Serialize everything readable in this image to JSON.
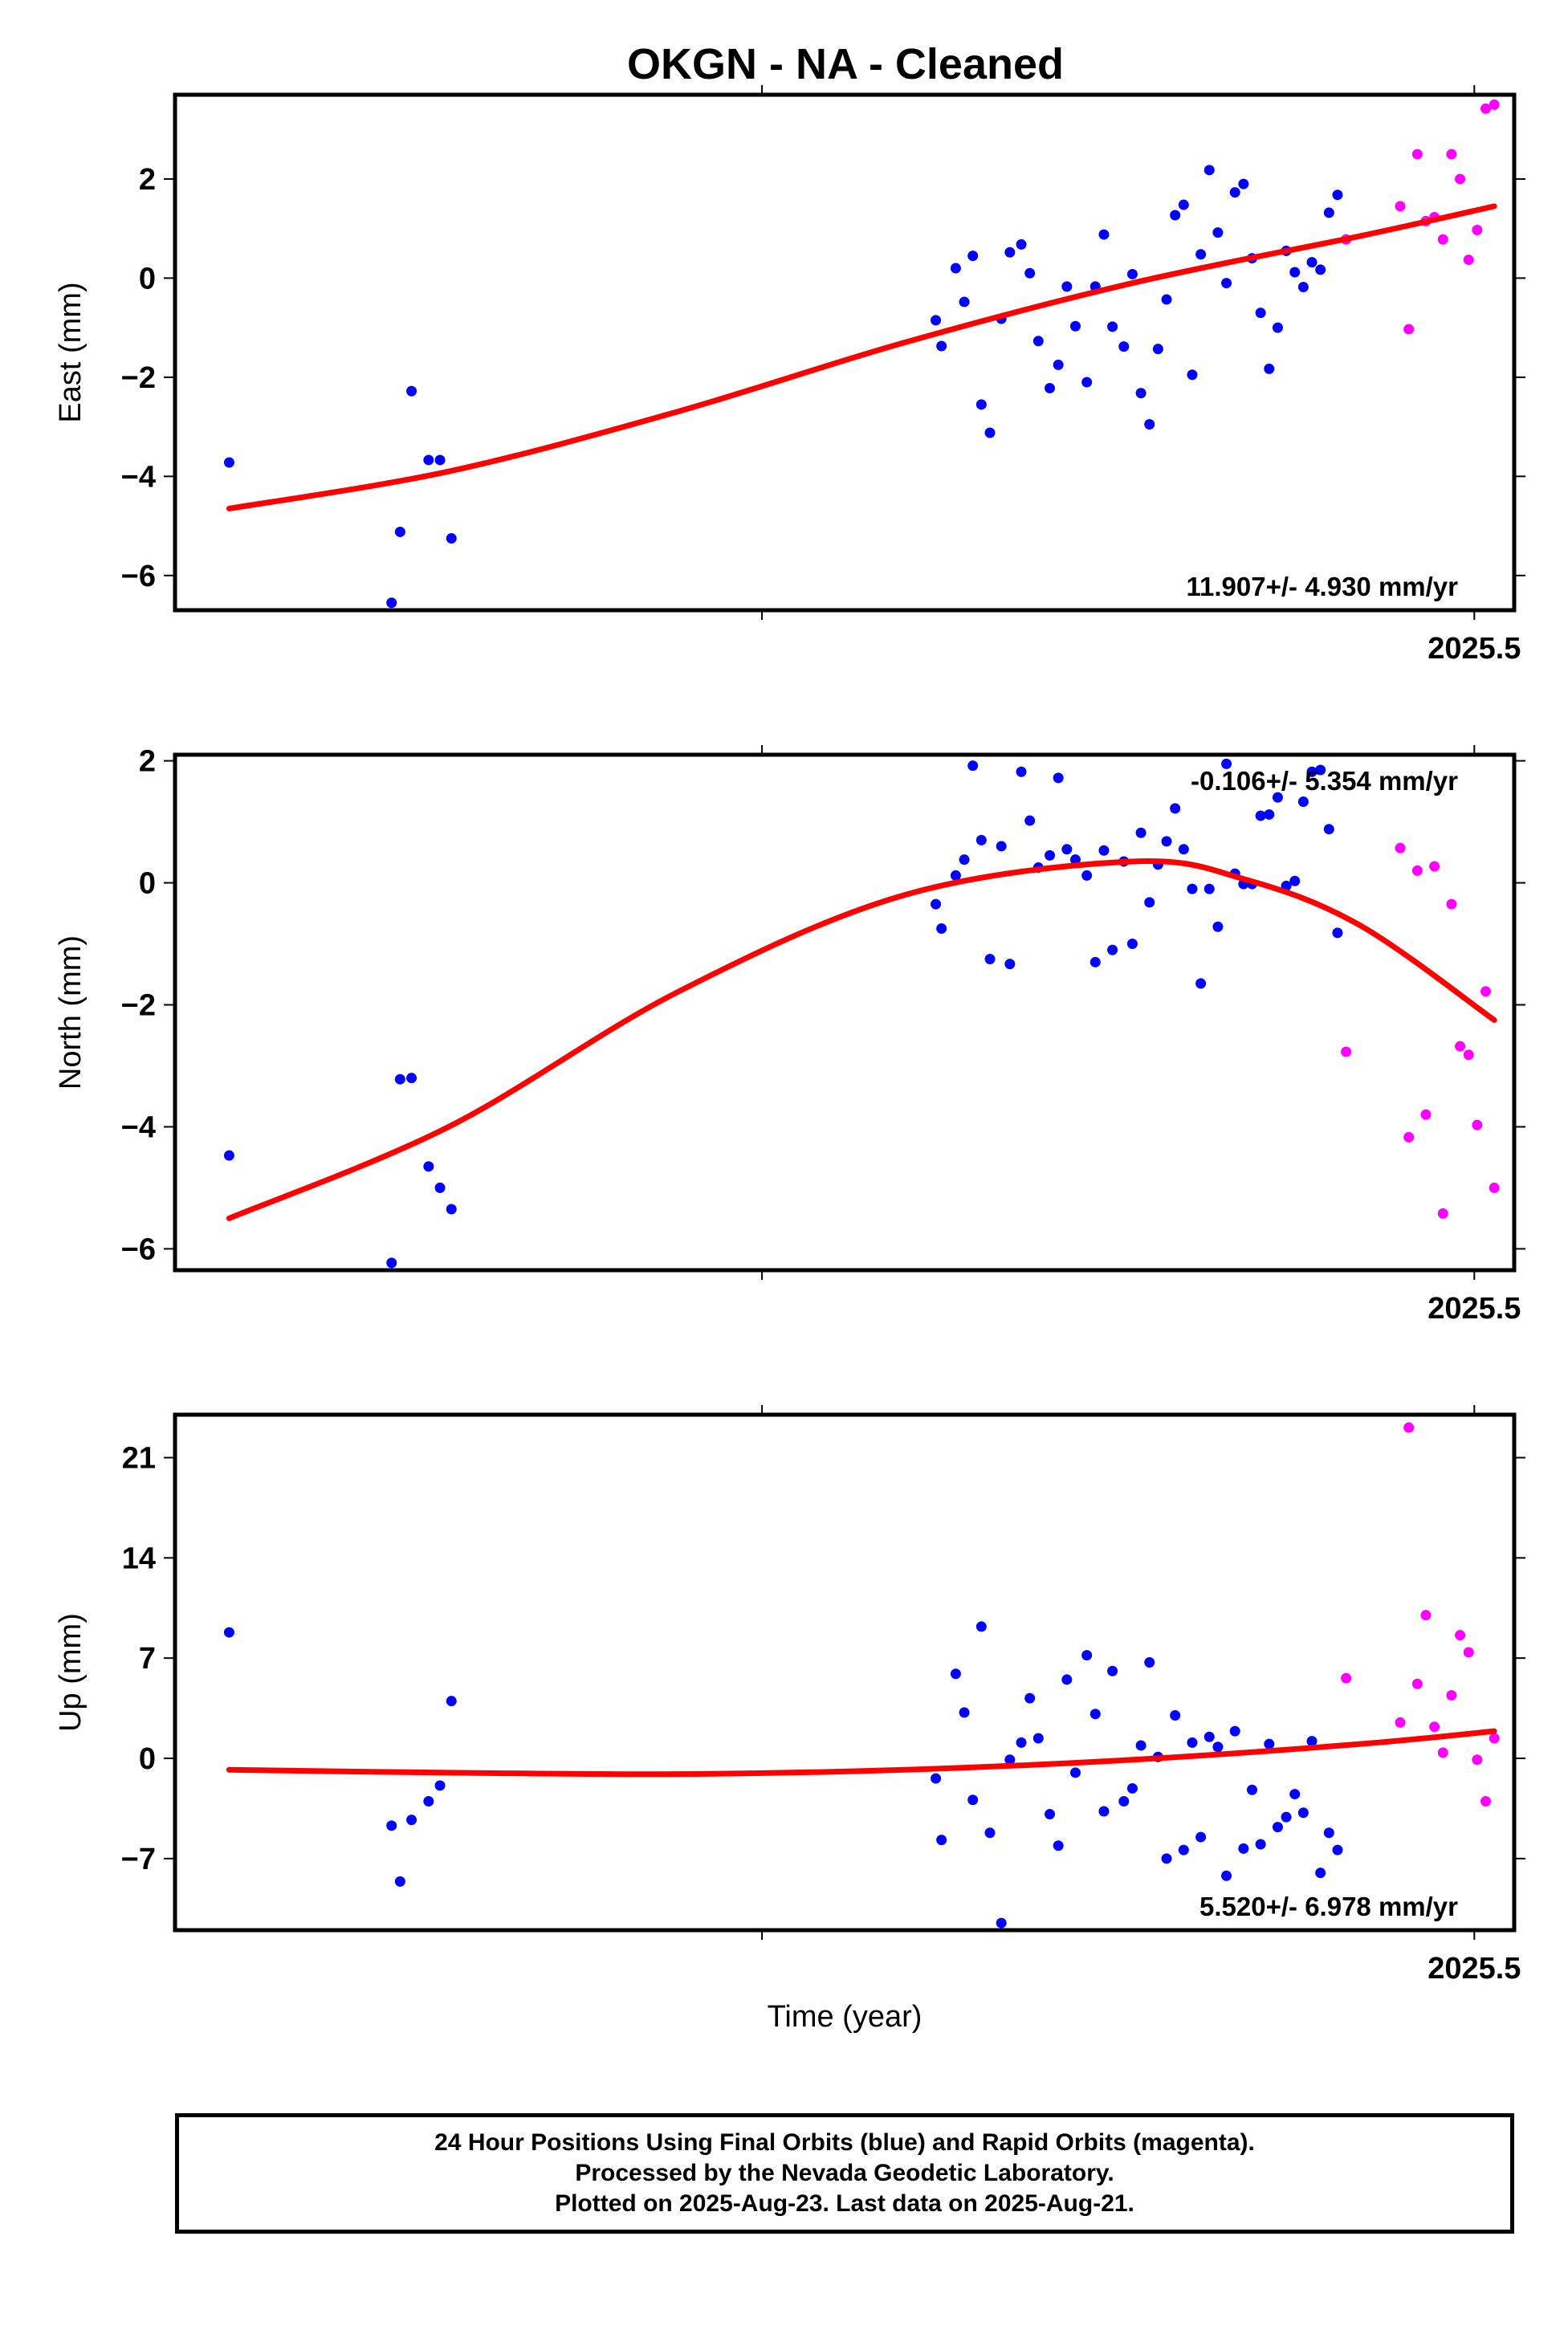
{
  "title": "OKGN  - NA - Cleaned",
  "chart_data": [
    {
      "type": "scatter",
      "component": "East",
      "ylabel": "East (mm)",
      "xlabel": "",
      "xtick_label": "2025.5",
      "ylim": [
        -6.7,
        3.7
      ],
      "yticks": [
        2,
        0,
        -2,
        -4,
        -6
      ],
      "ytick_labels": [
        "2",
        "0",
        "−2",
        "−4",
        "−6"
      ],
      "rate_text": "11.907+/- 4.930 mm/yr",
      "rate_position": "bottom-right",
      "colors": {
        "final": "#0000ff",
        "rapid": "#ff00ff",
        "fit": "#ff0000"
      },
      "series": [
        {
          "values": [
            [
              2025.063,
              -3.72
            ],
            [
              2025.12,
              -6.55
            ],
            [
              2025.123,
              -5.12
            ],
            [
              2025.127,
              -2.28
            ],
            [
              2025.133,
              -3.67
            ],
            [
              2025.137,
              -3.67
            ],
            [
              2025.141,
              -5.25
            ],
            [
              2025.311,
              -0.85
            ],
            [
              2025.313,
              -1.37
            ],
            [
              2025.318,
              0.2
            ],
            [
              2025.321,
              -0.48
            ],
            [
              2025.324,
              0.45
            ],
            [
              2025.327,
              -2.55
            ],
            [
              2025.33,
              -3.12
            ],
            [
              2025.334,
              -0.82
            ],
            [
              2025.337,
              0.52
            ],
            [
              2025.341,
              0.68
            ],
            [
              2025.344,
              0.1
            ],
            [
              2025.347,
              -1.27
            ],
            [
              2025.351,
              -2.22
            ],
            [
              2025.354,
              -1.75
            ],
            [
              2025.357,
              -0.17
            ],
            [
              2025.36,
              -0.97
            ],
            [
              2025.364,
              -2.1
            ],
            [
              2025.367,
              -0.17
            ],
            [
              2025.37,
              0.88
            ],
            [
              2025.373,
              -0.98
            ],
            [
              2025.377,
              -1.38
            ],
            [
              2025.38,
              0.08
            ],
            [
              2025.383,
              -2.32
            ],
            [
              2025.386,
              -2.95
            ],
            [
              2025.389,
              -1.43
            ],
            [
              2025.392,
              -0.43
            ],
            [
              2025.395,
              1.27
            ],
            [
              2025.398,
              1.48
            ],
            [
              2025.401,
              -1.95
            ],
            [
              2025.404,
              0.48
            ],
            [
              2025.407,
              2.18
            ],
            [
              2025.41,
              0.92
            ],
            [
              2025.413,
              -0.1
            ],
            [
              2025.416,
              1.73
            ],
            [
              2025.419,
              1.9
            ],
            [
              2025.422,
              0.4
            ],
            [
              2025.425,
              -0.7
            ],
            [
              2025.428,
              -1.83
            ],
            [
              2025.431,
              -1.0
            ],
            [
              2025.434,
              0.55
            ],
            [
              2025.437,
              0.12
            ],
            [
              2025.44,
              -0.18
            ],
            [
              2025.443,
              0.32
            ],
            [
              2025.446,
              0.17
            ],
            [
              2025.449,
              1.32
            ],
            [
              2025.452,
              1.68
            ]
          ]
        },
        {
          "values": [
            [
              2025.455,
              0.78
            ],
            [
              2025.474,
              1.45
            ],
            [
              2025.477,
              -1.03
            ],
            [
              2025.48,
              2.5
            ],
            [
              2025.483,
              1.15
            ],
            [
              2025.486,
              1.23
            ],
            [
              2025.489,
              0.78
            ],
            [
              2025.492,
              2.5
            ],
            [
              2025.495,
              2.0
            ],
            [
              2025.498,
              0.37
            ],
            [
              2025.501,
              0.97
            ],
            [
              2025.504,
              3.42
            ],
            [
              2025.507,
              3.5
            ]
          ]
        }
      ],
      "fit": {
        "x": [
          2025.063,
          2025.14,
          2025.22,
          2025.3,
          2025.38,
          2025.46,
          2025.507
        ],
        "y": [
          -4.65,
          -3.9,
          -2.7,
          -1.3,
          -0.1,
          0.85,
          1.45
        ]
      }
    },
    {
      "type": "scatter",
      "component": "North",
      "ylabel": "North (mm)",
      "xlabel": "",
      "xtick_label": "2025.5",
      "ylim": [
        -6.35,
        2.1
      ],
      "yticks": [
        2,
        0,
        -2,
        -4,
        -6
      ],
      "ytick_labels": [
        "2",
        "0",
        "−2",
        "−4",
        "−6"
      ],
      "rate_text": "-0.106+/- 5.354 mm/yr",
      "rate_position": "top-right",
      "colors": {
        "final": "#0000ff",
        "rapid": "#ff00ff",
        "fit": "#ff0000"
      },
      "series": [
        {
          "values": [
            [
              2025.063,
              -4.47
            ],
            [
              2025.12,
              -6.23
            ],
            [
              2025.123,
              -3.22
            ],
            [
              2025.127,
              -3.2
            ],
            [
              2025.133,
              -4.65
            ],
            [
              2025.137,
              -5.0
            ],
            [
              2025.141,
              -5.35
            ],
            [
              2025.311,
              -0.35
            ],
            [
              2025.313,
              -0.75
            ],
            [
              2025.318,
              0.12
            ],
            [
              2025.321,
              0.38
            ],
            [
              2025.324,
              1.92
            ],
            [
              2025.327,
              0.7
            ],
            [
              2025.33,
              -1.25
            ],
            [
              2025.334,
              0.6
            ],
            [
              2025.337,
              -1.33
            ],
            [
              2025.341,
              1.82
            ],
            [
              2025.344,
              1.02
            ],
            [
              2025.347,
              0.25
            ],
            [
              2025.351,
              0.45
            ],
            [
              2025.354,
              1.72
            ],
            [
              2025.357,
              0.55
            ],
            [
              2025.36,
              0.38
            ],
            [
              2025.364,
              0.12
            ],
            [
              2025.367,
              -1.3
            ],
            [
              2025.37,
              0.53
            ],
            [
              2025.373,
              -1.1
            ],
            [
              2025.377,
              0.35
            ],
            [
              2025.38,
              -1.0
            ],
            [
              2025.383,
              0.82
            ],
            [
              2025.386,
              -0.32
            ],
            [
              2025.389,
              0.3
            ],
            [
              2025.392,
              0.68
            ],
            [
              2025.395,
              1.22
            ],
            [
              2025.398,
              0.55
            ],
            [
              2025.401,
              -0.1
            ],
            [
              2025.404,
              -1.65
            ],
            [
              2025.407,
              -0.1
            ],
            [
              2025.41,
              -0.72
            ],
            [
              2025.413,
              1.95
            ],
            [
              2025.416,
              0.15
            ],
            [
              2025.419,
              -0.02
            ],
            [
              2025.422,
              -0.02
            ],
            [
              2025.425,
              1.1
            ],
            [
              2025.428,
              1.12
            ],
            [
              2025.431,
              1.4
            ],
            [
              2025.434,
              -0.05
            ],
            [
              2025.437,
              0.03
            ],
            [
              2025.44,
              1.33
            ],
            [
              2025.443,
              1.82
            ],
            [
              2025.446,
              1.85
            ],
            [
              2025.449,
              0.88
            ],
            [
              2025.452,
              -0.82
            ]
          ]
        },
        {
          "values": [
            [
              2025.455,
              -2.77
            ],
            [
              2025.474,
              0.57
            ],
            [
              2025.477,
              -4.17
            ],
            [
              2025.48,
              0.2
            ],
            [
              2025.483,
              -3.8
            ],
            [
              2025.486,
              0.27
            ],
            [
              2025.489,
              -5.42
            ],
            [
              2025.492,
              -0.35
            ],
            [
              2025.495,
              -2.68
            ],
            [
              2025.498,
              -2.82
            ],
            [
              2025.501,
              -3.97
            ],
            [
              2025.504,
              -1.78
            ],
            [
              2025.507,
              -5.0
            ]
          ]
        }
      ],
      "fit": {
        "x": [
          2025.063,
          2025.14,
          2025.22,
          2025.3,
          2025.38,
          2025.42,
          2025.46,
          2025.507
        ],
        "y": [
          -5.5,
          -4.0,
          -1.8,
          -0.2,
          0.35,
          0.05,
          -0.7,
          -2.25
        ]
      }
    },
    {
      "type": "scatter",
      "component": "Up",
      "ylabel": "Up (mm)",
      "xlabel": "Time (year)",
      "xtick_label": "2025.5",
      "ylim": [
        -12.0,
        24.0
      ],
      "yticks": [
        21,
        14,
        7,
        0,
        -7
      ],
      "ytick_labels": [
        "21",
        "14",
        "7",
        "0",
        "−7"
      ],
      "rate_text": "5.520+/- 6.978 mm/yr",
      "rate_position": "bottom-right",
      "colors": {
        "final": "#0000ff",
        "rapid": "#ff00ff",
        "fit": "#ff0000"
      },
      "series": [
        {
          "values": [
            [
              2025.063,
              8.8
            ],
            [
              2025.12,
              -4.7
            ],
            [
              2025.123,
              -8.6
            ],
            [
              2025.127,
              -4.3
            ],
            [
              2025.133,
              -3.0
            ],
            [
              2025.137,
              -1.9
            ],
            [
              2025.141,
              4.0
            ],
            [
              2025.311,
              -1.4
            ],
            [
              2025.313,
              -5.7
            ],
            [
              2025.318,
              5.9
            ],
            [
              2025.321,
              3.2
            ],
            [
              2025.324,
              -2.9
            ],
            [
              2025.327,
              9.2
            ],
            [
              2025.33,
              -5.2
            ],
            [
              2025.334,
              -11.5
            ],
            [
              2025.337,
              -0.1
            ],
            [
              2025.341,
              1.1
            ],
            [
              2025.344,
              4.2
            ],
            [
              2025.347,
              1.4
            ],
            [
              2025.351,
              -3.9
            ],
            [
              2025.354,
              -6.1
            ],
            [
              2025.357,
              5.5
            ],
            [
              2025.36,
              -1.0
            ],
            [
              2025.364,
              7.2
            ],
            [
              2025.367,
              3.1
            ],
            [
              2025.37,
              -3.7
            ],
            [
              2025.373,
              6.1
            ],
            [
              2025.377,
              -3.0
            ],
            [
              2025.38,
              -2.1
            ],
            [
              2025.383,
              0.9
            ],
            [
              2025.386,
              6.7
            ],
            [
              2025.389,
              0.1
            ],
            [
              2025.392,
              -7.0
            ],
            [
              2025.395,
              3.0
            ],
            [
              2025.398,
              -6.4
            ],
            [
              2025.401,
              1.1
            ],
            [
              2025.404,
              -5.5
            ],
            [
              2025.407,
              1.5
            ],
            [
              2025.41,
              0.8
            ],
            [
              2025.413,
              -8.2
            ],
            [
              2025.416,
              1.9
            ],
            [
              2025.419,
              -6.3
            ],
            [
              2025.422,
              -2.2
            ],
            [
              2025.425,
              -6.0
            ],
            [
              2025.428,
              1.0
            ],
            [
              2025.431,
              -4.8
            ],
            [
              2025.434,
              -4.1
            ],
            [
              2025.437,
              -2.5
            ],
            [
              2025.44,
              -3.8
            ],
            [
              2025.443,
              1.2
            ],
            [
              2025.446,
              -8.0
            ],
            [
              2025.449,
              -5.2
            ],
            [
              2025.452,
              -6.4
            ]
          ]
        },
        {
          "values": [
            [
              2025.455,
              5.6
            ],
            [
              2025.474,
              2.5
            ],
            [
              2025.477,
              23.1
            ],
            [
              2025.48,
              5.2
            ],
            [
              2025.483,
              10.0
            ],
            [
              2025.486,
              2.2
            ],
            [
              2025.489,
              0.4
            ],
            [
              2025.492,
              4.4
            ],
            [
              2025.495,
              8.6
            ],
            [
              2025.498,
              7.4
            ],
            [
              2025.501,
              -0.1
            ],
            [
              2025.504,
              -3.0
            ],
            [
              2025.507,
              1.4
            ]
          ]
        }
      ],
      "fit": {
        "x": [
          2025.063,
          2025.14,
          2025.22,
          2025.3,
          2025.38,
          2025.46,
          2025.507
        ],
        "y": [
          -0.8,
          -1.0,
          -1.1,
          -0.8,
          -0.1,
          1.0,
          1.9
        ]
      }
    }
  ],
  "caption": {
    "line1": "24 Hour Positions Using Final Orbits (blue) and Rapid Orbits (magenta).",
    "line2": "Processed by the Nevada Geodetic Laboratory.",
    "line3": "Plotted on 2025-Aug-23. Last data on 2025-Aug-21."
  }
}
